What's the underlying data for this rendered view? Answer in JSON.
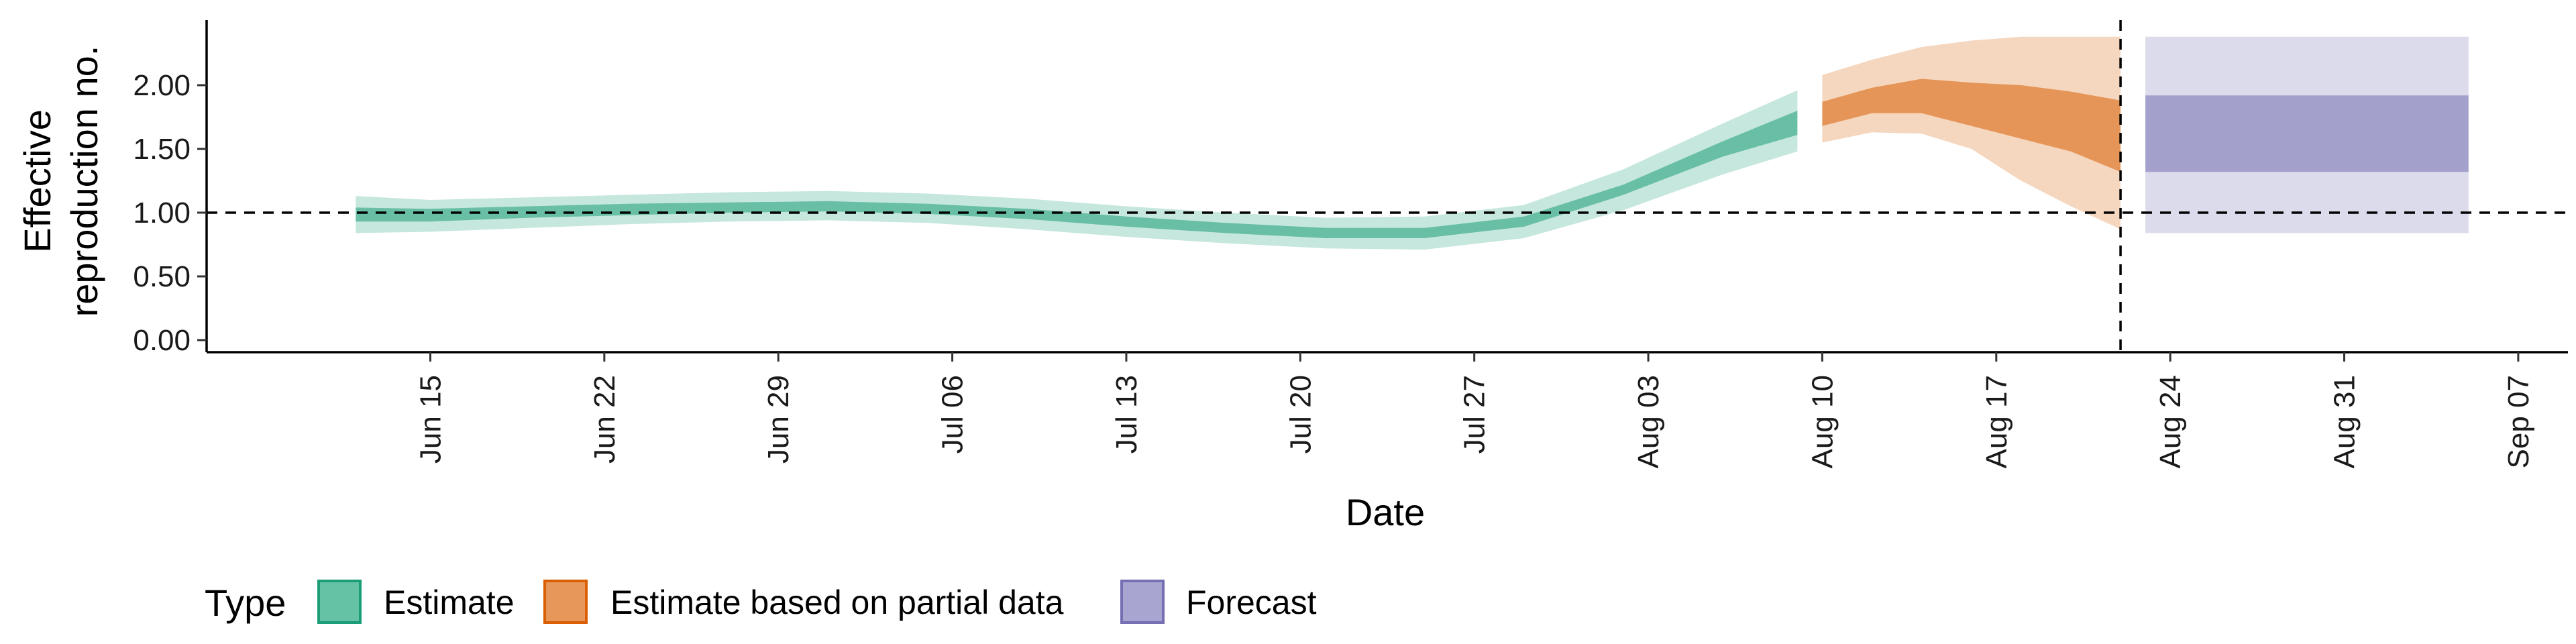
{
  "chart_data": {
    "type": "area",
    "title": "",
    "xlabel": "Date",
    "ylabel_lines": [
      "Effective",
      "reproduction no."
    ],
    "ylim": [
      0,
      2.5
    ],
    "y_ticks": [
      0.0,
      0.5,
      1.0,
      1.5,
      2.0
    ],
    "y_tick_labels": [
      "0.00",
      "0.50",
      "1.00",
      "1.50",
      "2.00"
    ],
    "x_range": [
      "2020-06-06",
      "2020-09-09"
    ],
    "x_ticks": [
      "2020-06-15",
      "2020-06-22",
      "2020-06-29",
      "2020-07-06",
      "2020-07-13",
      "2020-07-20",
      "2020-07-27",
      "2020-08-03",
      "2020-08-10",
      "2020-08-17",
      "2020-08-24",
      "2020-08-31",
      "2020-09-07"
    ],
    "x_tick_labels": [
      "Jun 15",
      "Jun 22",
      "Jun 29",
      "Jul 06",
      "Jul 13",
      "Jul 20",
      "Jul 27",
      "Aug 03",
      "Aug 10",
      "Aug 17",
      "Aug 24",
      "Aug 31",
      "Sep 07"
    ],
    "reference_lines": {
      "horizontal_y": 1.0,
      "vertical_date": "2020-08-22"
    },
    "legend": {
      "position": "bottom-left",
      "title": "Type",
      "entries": [
        {
          "label": "Estimate",
          "fill": "#66c2a5",
          "border": "#1b9e77"
        },
        {
          "label": "Estimate based on partial data",
          "fill": "#e8975a",
          "border": "#d95f02"
        },
        {
          "label": "Forecast",
          "fill": "#a9a5d1",
          "border": "#7570b3"
        }
      ]
    },
    "series": [
      {
        "name": "Estimate",
        "color": "#1b9e77",
        "dates": [
          "2020-06-12",
          "2020-06-15",
          "2020-06-19",
          "2020-06-23",
          "2020-06-27",
          "2020-07-01",
          "2020-07-05",
          "2020-07-09",
          "2020-07-13",
          "2020-07-17",
          "2020-07-21",
          "2020-07-25",
          "2020-07-29",
          "2020-08-02",
          "2020-08-06",
          "2020-08-09"
        ],
        "lower_90": [
          0.84,
          0.85,
          0.88,
          0.91,
          0.93,
          0.94,
          0.92,
          0.87,
          0.81,
          0.76,
          0.72,
          0.71,
          0.8,
          1.02,
          1.3,
          1.48
        ],
        "upper_90": [
          1.13,
          1.1,
          1.12,
          1.14,
          1.16,
          1.17,
          1.15,
          1.11,
          1.05,
          1.0,
          0.96,
          0.97,
          1.06,
          1.34,
          1.7,
          1.96
        ],
        "lower_50": [
          0.93,
          0.93,
          0.96,
          0.98,
          1.0,
          1.01,
          0.99,
          0.95,
          0.89,
          0.84,
          0.8,
          0.8,
          0.89,
          1.14,
          1.44,
          1.61
        ],
        "upper_50": [
          1.04,
          1.03,
          1.05,
          1.07,
          1.08,
          1.09,
          1.07,
          1.03,
          0.97,
          0.92,
          0.88,
          0.88,
          0.97,
          1.22,
          1.56,
          1.8
        ]
      },
      {
        "name": "Estimate based on partial data",
        "color": "#d95f02",
        "dates": [
          "2020-08-10",
          "2020-08-12",
          "2020-08-14",
          "2020-08-16",
          "2020-08-18",
          "2020-08-20",
          "2020-08-22"
        ],
        "lower_90": [
          1.55,
          1.63,
          1.62,
          1.5,
          1.25,
          1.05,
          0.87
        ],
        "upper_90": [
          2.08,
          2.2,
          2.3,
          2.35,
          2.38,
          2.38,
          2.38
        ],
        "lower_50": [
          1.68,
          1.78,
          1.78,
          1.68,
          1.58,
          1.48,
          1.32
        ],
        "upper_50": [
          1.87,
          1.98,
          2.05,
          2.02,
          2.0,
          1.95,
          1.88
        ]
      },
      {
        "name": "Forecast",
        "color": "#7570b3",
        "dates": [
          "2020-08-23",
          "2020-09-05"
        ],
        "lower_90": [
          0.84,
          0.84
        ],
        "upper_90": [
          2.38,
          2.38
        ],
        "lower_50": [
          1.32,
          1.32
        ],
        "upper_50": [
          1.92,
          1.92
        ]
      }
    ]
  }
}
